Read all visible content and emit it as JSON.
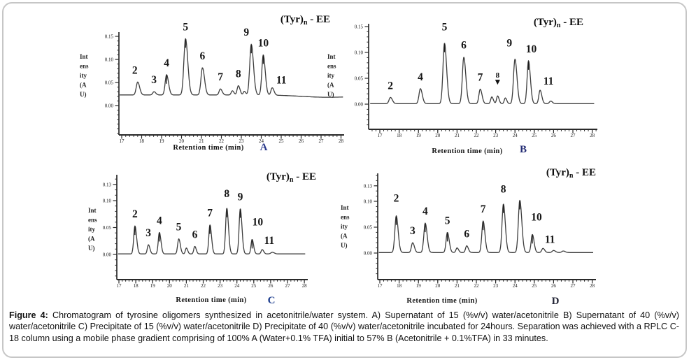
{
  "figure": {
    "caption_label": "Figure 4:",
    "caption_text": " Chromatogram of tyrosine oligomers synthesized in acetonitrile/water system.  A) Supernatant of 15 (%v/v) water/acetonitrile B) Supernatant of 40 (%v/v) water/acetonitrile C) Precipitate of 15 (%v/v) water/acetonitrile D) Precipitate of 40 (%v/v) water/acetonitrile incubated for 24hours. Separation was achieved with a RPLC C-18 column using a mobile phase gradient comprising of 100% A (Water+0.1% TFA) initial to 57% B (Acetonitrile + 0.1%TFA) in 33 minutes."
  },
  "chart_data": [
    {
      "id": "A",
      "type": "line",
      "title": {
        "pre": "(Tyr)",
        "sub": "n",
        "post": " - EE"
      },
      "xlabel": "Retention time (min)",
      "ylabel": "Intensity (AU)",
      "ylabel_lines": [
        "Int",
        "ens",
        "ity",
        "(A",
        "U)"
      ],
      "letter": "A",
      "letter_color": "#2b3a8c",
      "x_ticks": [
        17,
        18,
        19,
        20,
        21,
        22,
        23,
        24,
        25,
        26,
        27,
        28
      ],
      "y_ticks": [
        {
          "v": 0.15,
          "label": "0.15"
        },
        {
          "v": 0.1,
          "label": "0.10"
        },
        {
          "v": 0.05,
          "label": "0.05"
        },
        {
          "v": 0.0,
          "label": "0.00"
        }
      ],
      "xlim": [
        16.9,
        28.1
      ],
      "baseline": 0.023,
      "peaks": [
        {
          "label": "2",
          "t": 17.8,
          "h": 0.028,
          "w": 0.1,
          "dx": -4
        },
        {
          "label": "3",
          "t": 18.62,
          "h": 0.007,
          "w": 0.09
        },
        {
          "label": "4",
          "t": 19.25,
          "h": 0.044,
          "w": 0.1,
          "tick": true
        },
        {
          "label": "5",
          "t": 20.2,
          "h": 0.122,
          "w": 0.115,
          "tick": true
        },
        {
          "label": "6",
          "t": 21.05,
          "h": 0.059,
          "w": 0.105
        },
        {
          "label": "7",
          "t": 21.95,
          "h": 0.013,
          "w": 0.09
        },
        {
          "label": "",
          "t": 22.55,
          "h": 0.009,
          "w": 0.08
        },
        {
          "label": "8",
          "t": 22.85,
          "h": 0.02,
          "w": 0.085
        },
        {
          "label": "",
          "t": 23.15,
          "h": 0.008,
          "w": 0.07
        },
        {
          "label": "9",
          "t": 23.5,
          "h": 0.11,
          "w": 0.11,
          "tick": true,
          "dx": -7
        },
        {
          "label": "10",
          "t": 24.1,
          "h": 0.087,
          "w": 0.1,
          "tick": true
        },
        {
          "label": "11",
          "t": 24.55,
          "h": 0.016,
          "w": 0.09,
          "dx": 13,
          "dy": 6
        },
        {
          "label": "",
          "t": 27.3,
          "h": -0.005,
          "w": 1.8
        }
      ]
    },
    {
      "id": "B",
      "type": "line",
      "title": {
        "pre": "(Tyr)",
        "sub": "n",
        "post": " - EE"
      },
      "xlabel": "Retention time (min)",
      "ylabel": "Intensity (AU)",
      "ylabel_lines": [
        "Int",
        "ens",
        "ity",
        "(A",
        "U)"
      ],
      "letter": "B",
      "letter_color": "#232c74",
      "x_ticks": [
        17,
        18,
        19,
        20,
        21,
        22,
        23,
        24,
        25,
        26,
        27,
        28
      ],
      "y_ticks": [
        {
          "v": 0.15,
          "label": "0.15"
        },
        {
          "v": 0.1,
          "label": "0.10"
        },
        {
          "v": 0.05,
          "label": "0.05"
        },
        {
          "v": 0.0,
          "label": "0.00"
        }
      ],
      "xlim": [
        16.5,
        28.1
      ],
      "baseline": 0.001,
      "peaks": [
        {
          "label": "2",
          "t": 17.55,
          "h": 0.012,
          "w": 0.1
        },
        {
          "label": "4",
          "t": 19.1,
          "h": 0.029,
          "w": 0.1
        },
        {
          "label": "5",
          "t": 20.35,
          "h": 0.117,
          "w": 0.11,
          "tick": true,
          "dy": -6
        },
        {
          "label": "6",
          "t": 21.35,
          "h": 0.09,
          "w": 0.105
        },
        {
          "label": "7",
          "t": 22.2,
          "h": 0.028,
          "w": 0.095
        },
        {
          "label": "",
          "t": 22.8,
          "h": 0.013,
          "w": 0.08
        },
        {
          "label": "8",
          "t": 23.1,
          "h": 0.015,
          "w": 0.075,
          "arrow": true,
          "small": true,
          "dy": -6
        },
        {
          "label": "",
          "t": 23.5,
          "h": 0.011,
          "w": 0.075
        },
        {
          "label": "9",
          "t": 24.0,
          "h": 0.086,
          "w": 0.105,
          "dx": -8,
          "dy": -6
        },
        {
          "label": "10",
          "t": 24.7,
          "h": 0.083,
          "w": 0.1,
          "tick": true,
          "dx": 4
        },
        {
          "label": "11",
          "t": 25.3,
          "h": 0.026,
          "w": 0.09,
          "dx": 12,
          "dy": 4
        },
        {
          "label": "",
          "t": 25.85,
          "h": 0.005,
          "w": 0.09
        }
      ]
    },
    {
      "id": "C",
      "type": "line",
      "title": {
        "pre": "(Tyr)",
        "sub": "n",
        "post": " - EE"
      },
      "xlabel": "Retention time (min)",
      "ylabel": "Intensity (AU)",
      "ylabel_lines": [
        "Int",
        "ens",
        "ity",
        "(A",
        "U)"
      ],
      "letter": "C",
      "letter_color": "#1f3f8f",
      "x_ticks": [
        17,
        18,
        19,
        20,
        21,
        22,
        23,
        24,
        25,
        26,
        27,
        28
      ],
      "y_ticks": [
        {
          "v": 0.13,
          "label": "0.13"
        },
        {
          "v": 0.1,
          "label": "0.10"
        },
        {
          "v": 0.05,
          "label": "0.05"
        },
        {
          "v": 0.0,
          "label": "0.00"
        }
      ],
      "xlim": [
        16.95,
        28.05
      ],
      "baseline": 0.001,
      "peaks": [
        {
          "label": "2",
          "t": 17.95,
          "h": 0.052,
          "w": 0.1,
          "tick": true
        },
        {
          "label": "3",
          "t": 18.75,
          "h": 0.017,
          "w": 0.09
        },
        {
          "label": "4",
          "t": 19.4,
          "h": 0.04,
          "w": 0.095,
          "tick": true
        },
        {
          "label": "5",
          "t": 20.55,
          "h": 0.028,
          "w": 0.095
        },
        {
          "label": "",
          "t": 21.0,
          "h": 0.011,
          "w": 0.08
        },
        {
          "label": "6",
          "t": 21.5,
          "h": 0.014,
          "w": 0.085
        },
        {
          "label": "7",
          "t": 22.4,
          "h": 0.054,
          "w": 0.095,
          "tick": true
        },
        {
          "label": "8",
          "t": 23.4,
          "h": 0.085,
          "w": 0.1,
          "tick": true,
          "dy": -4
        },
        {
          "label": "9",
          "t": 24.2,
          "h": 0.084,
          "w": 0.1,
          "tick": true
        },
        {
          "label": "10",
          "t": 24.9,
          "h": 0.027,
          "w": 0.09,
          "tick": true,
          "dx": 8,
          "dy": -8
        },
        {
          "label": "11",
          "t": 25.5,
          "h": 0.008,
          "w": 0.09,
          "dx": 10,
          "dy": 4
        },
        {
          "label": "",
          "t": 26.1,
          "h": 0.003,
          "w": 0.12
        }
      ]
    },
    {
      "id": "D",
      "type": "line",
      "title": {
        "pre": "(Tyr)",
        "sub": "n",
        "post": " - EE"
      },
      "xlabel": "Retention time (min)",
      "ylabel": "Intensity (AU)",
      "ylabel_lines": [
        "Int",
        "ens",
        "ity",
        "(A",
        "U)"
      ],
      "letter": "D",
      "letter_color": "#232536",
      "x_ticks": [
        17,
        18,
        19,
        20,
        21,
        22,
        23,
        24,
        25,
        26,
        27,
        28
      ],
      "y_ticks": [
        {
          "v": 0.13,
          "label": "0.13"
        },
        {
          "v": 0.1,
          "label": "0.10"
        },
        {
          "v": 0.05,
          "label": "0.05"
        },
        {
          "v": 0.0,
          "label": "0.00"
        }
      ],
      "xlim": [
        16.95,
        28.05
      ],
      "baseline": 0.001,
      "peaks": [
        {
          "label": "2",
          "t": 17.85,
          "h": 0.071,
          "w": 0.1,
          "tick": true,
          "dy": -8
        },
        {
          "label": "3",
          "t": 18.7,
          "h": 0.019,
          "w": 0.09
        },
        {
          "label": "4",
          "t": 19.35,
          "h": 0.057,
          "w": 0.1,
          "tick": true
        },
        {
          "label": "5",
          "t": 20.5,
          "h": 0.039,
          "w": 0.095,
          "tick": true
        },
        {
          "label": "",
          "t": 21.0,
          "h": 0.009,
          "w": 0.08
        },
        {
          "label": "6",
          "t": 21.5,
          "h": 0.013,
          "w": 0.085
        },
        {
          "label": "7",
          "t": 22.35,
          "h": 0.061,
          "w": 0.095,
          "tick": true
        },
        {
          "label": "8",
          "t": 23.4,
          "h": 0.094,
          "w": 0.1,
          "tick": true,
          "dy": -4
        },
        {
          "label": "",
          "t": 24.25,
          "h": 0.101,
          "w": 0.105,
          "tick": true
        },
        {
          "label": "10",
          "t": 24.9,
          "h": 0.035,
          "w": 0.09,
          "tick": true,
          "dx": 6,
          "dy": -8
        },
        {
          "label": "11",
          "t": 25.45,
          "h": 0.008,
          "w": 0.09,
          "dx": 10,
          "dy": 4
        },
        {
          "label": "",
          "t": 26.0,
          "h": 0.004,
          "w": 0.1
        },
        {
          "label": "",
          "t": 26.5,
          "h": 0.003,
          "w": 0.1
        }
      ]
    }
  ]
}
